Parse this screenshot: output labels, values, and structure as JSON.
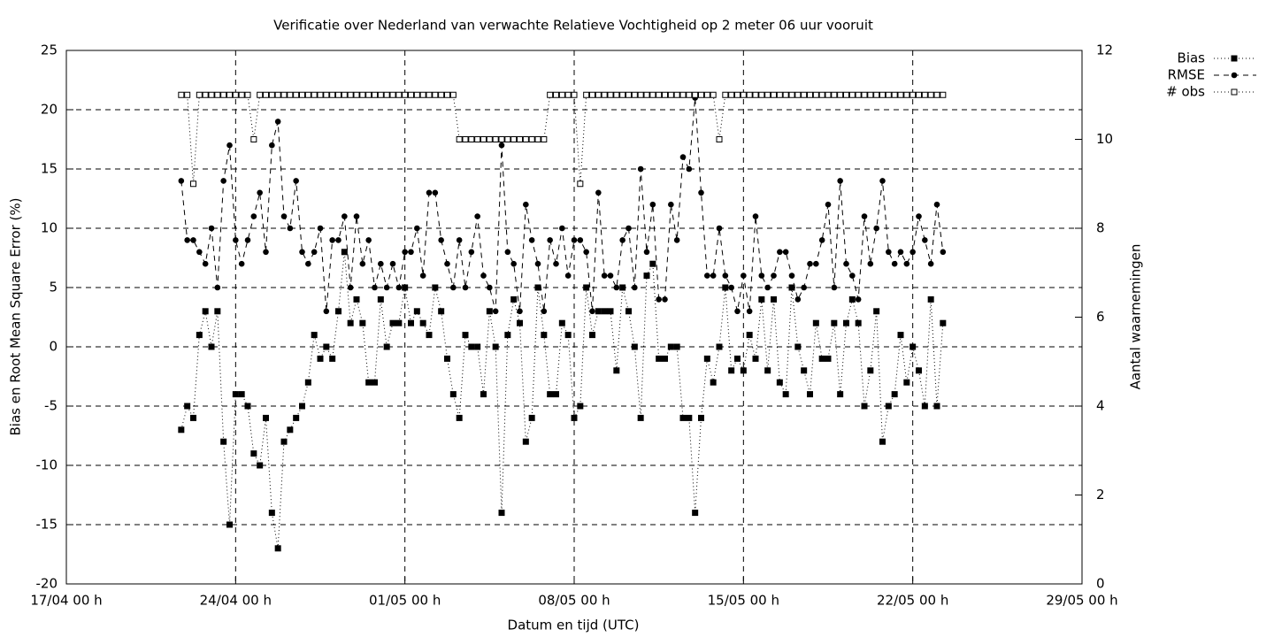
{
  "chart_data": {
    "type": "line",
    "title": "Verificatie over Nederland van verwachte Relatieve Vochtigheid op 2 meter 06 uur vooruit",
    "x_label": "Datum en tijd (UTC)",
    "y_label": "Bias en Root Mean Square Error (%)",
    "y2_label": "Aantal waarnemingen",
    "xlim": [
      "17/04 00 h",
      "29/05 00 h"
    ],
    "xticks": [
      "17/04 00 h",
      "24/04 00 h",
      "01/05 00 h",
      "08/05 00 h",
      "15/05 00 h",
      "22/05 00 h",
      "29/05 00 h"
    ],
    "ylim": [
      -20,
      25
    ],
    "yticks": [
      -20,
      -15,
      -10,
      -5,
      0,
      5,
      10,
      15,
      20,
      25
    ],
    "y2lim": [
      0,
      12
    ],
    "y2ticks": [
      0,
      2,
      4,
      6,
      8,
      10,
      12
    ],
    "grid": true,
    "legend": "top-right",
    "x": [
      "21/04 18 h",
      "22/04 00 h",
      "22/04 06 h",
      "22/04 12 h",
      "22/04 18 h",
      "23/04 00 h",
      "23/04 06 h",
      "23/04 12 h",
      "23/04 18 h",
      "24/04 00 h",
      "24/04 06 h",
      "24/04 12 h",
      "24/04 18 h",
      "25/04 00 h",
      "25/04 06 h",
      "25/04 12 h",
      "25/04 18 h",
      "26/04 00 h",
      "26/04 06 h",
      "26/04 12 h",
      "26/04 18 h",
      "27/04 00 h",
      "27/04 06 h",
      "27/04 12 h",
      "27/04 18 h",
      "28/04 00 h",
      "28/04 06 h",
      "28/04 12 h",
      "28/04 18 h",
      "29/04 00 h",
      "29/04 06 h",
      "29/04 12 h",
      "29/04 18 h",
      "30/04 00 h",
      "30/04 06 h",
      "30/04 12 h",
      "30/04 18 h",
      "01/05 00 h",
      "01/05 06 h",
      "01/05 12 h",
      "01/05 18 h",
      "02/05 00 h",
      "02/05 06 h",
      "02/05 12 h",
      "02/05 18 h",
      "03/05 00 h",
      "03/05 06 h",
      "03/05 12 h",
      "03/05 18 h",
      "04/05 00 h",
      "04/05 06 h",
      "04/05 12 h",
      "04/05 18 h",
      "05/05 00 h",
      "05/05 06 h",
      "05/05 12 h",
      "05/05 18 h",
      "06/05 00 h",
      "06/05 06 h",
      "06/05 12 h",
      "06/05 18 h",
      "07/05 00 h",
      "07/05 06 h",
      "07/05 12 h",
      "07/05 18 h",
      "08/05 00 h",
      "08/05 06 h",
      "08/05 12 h",
      "08/05 18 h",
      "09/05 00 h",
      "09/05 06 h",
      "09/05 12 h",
      "09/05 18 h",
      "10/05 00 h",
      "10/05 06 h",
      "10/05 12 h",
      "10/05 18 h",
      "11/05 00 h",
      "11/05 06 h",
      "11/05 12 h",
      "11/05 18 h",
      "12/05 00 h",
      "12/05 06 h",
      "12/05 12 h",
      "12/05 18 h",
      "13/05 00 h",
      "13/05 06 h",
      "13/05 12 h",
      "13/05 18 h",
      "14/05 00 h",
      "14/05 06 h",
      "14/05 12 h",
      "14/05 18 h",
      "15/05 00 h",
      "15/05 06 h",
      "15/05 12 h",
      "15/05 18 h",
      "16/05 00 h",
      "16/05 06 h",
      "16/05 12 h",
      "16/05 18 h",
      "17/05 00 h",
      "17/05 06 h",
      "17/05 12 h",
      "17/05 18 h",
      "18/05 00 h",
      "18/05 06 h",
      "18/05 12 h",
      "18/05 18 h",
      "19/05 00 h",
      "19/05 06 h",
      "19/05 12 h",
      "19/05 18 h",
      "20/05 00 h",
      "20/05 06 h",
      "20/05 12 h",
      "20/05 18 h",
      "21/05 00 h",
      "21/05 06 h",
      "21/05 12 h",
      "21/05 18 h",
      "22/05 00 h",
      "22/05 06 h",
      "22/05 12 h",
      "22/05 18 h",
      "23/05 00 h",
      "23/05 06 h"
    ],
    "series": [
      {
        "name": "Bias",
        "color": "#000000",
        "marker": "square",
        "line": "dotted",
        "values": [
          -7,
          -5,
          -6,
          1,
          3,
          0,
          3,
          -8,
          -15,
          -4,
          -4,
          -5,
          -9,
          -10,
          -6,
          -14,
          -17,
          -8,
          -7,
          -6,
          -5,
          -3,
          1,
          -1,
          0,
          -1,
          3,
          8,
          2,
          4,
          2,
          -3,
          -3,
          4,
          0,
          2,
          2,
          5,
          2,
          3,
          2,
          1,
          5,
          3,
          -1,
          -4,
          -6,
          1,
          0,
          0,
          -4,
          3,
          0,
          -14,
          1,
          4,
          2,
          -8,
          -6,
          5,
          1,
          -4,
          -4,
          2,
          1,
          -6,
          -5,
          5,
          1,
          3,
          3,
          3,
          -2,
          5,
          3,
          0,
          -6,
          6,
          7,
          -1,
          -1,
          0,
          0,
          -6,
          -6,
          -14,
          -6,
          -1,
          -3,
          0,
          5,
          -2,
          -1,
          -2,
          1,
          -1,
          4,
          -2,
          4,
          -3,
          -4,
          5,
          0,
          -2,
          -4,
          2,
          -1,
          -1,
          2,
          -4,
          2,
          4,
          2,
          -5,
          -2,
          3,
          -8,
          -5,
          -4,
          1,
          -3,
          0,
          -2,
          -5,
          4,
          -5,
          2
        ]
      },
      {
        "name": "RMSE",
        "color": "#000000",
        "marker": "circle",
        "line": "dashed",
        "values": [
          14,
          9,
          9,
          8,
          7,
          10,
          5,
          14,
          17,
          9,
          7,
          9,
          11,
          13,
          8,
          17,
          19,
          11,
          10,
          14,
          8,
          7,
          8,
          10,
          3,
          9,
          9,
          11,
          5,
          11,
          7,
          9,
          5,
          7,
          5,
          7,
          5,
          8,
          8,
          10,
          6,
          13,
          13,
          9,
          7,
          5,
          9,
          5,
          8,
          11,
          6,
          5,
          3,
          17,
          8,
          7,
          3,
          12,
          9,
          7,
          3,
          9,
          7,
          10,
          6,
          9,
          9,
          8,
          3,
          13,
          6,
          6,
          5,
          9,
          10,
          5,
          15,
          8,
          12,
          4,
          4,
          12,
          9,
          16,
          15,
          21,
          13,
          6,
          6,
          10,
          6,
          5,
          3,
          6,
          3,
          11,
          6,
          5,
          6,
          8,
          8,
          6,
          4,
          5,
          7,
          7,
          9,
          12,
          5,
          14,
          7,
          6,
          4,
          11,
          7,
          10,
          14,
          8,
          7,
          8,
          7,
          8,
          11,
          9,
          7,
          12,
          8
        ]
      },
      {
        "name": "# obs",
        "color": "#000000",
        "marker": "open-square",
        "line": "dotted",
        "axis": "y2",
        "values": [
          11,
          11,
          9,
          11,
          11,
          11,
          11,
          11,
          11,
          11,
          11,
          11,
          10,
          11,
          11,
          11,
          11,
          11,
          11,
          11,
          11,
          11,
          11,
          11,
          11,
          11,
          11,
          11,
          11,
          11,
          11,
          11,
          11,
          11,
          11,
          11,
          11,
          11,
          11,
          11,
          11,
          11,
          11,
          11,
          11,
          11,
          10,
          10,
          10,
          10,
          10,
          10,
          10,
          10,
          10,
          10,
          10,
          10,
          10,
          10,
          10,
          11,
          11,
          11,
          11,
          11,
          9,
          11,
          11,
          11,
          11,
          11,
          11,
          11,
          11,
          11,
          11,
          11,
          11,
          11,
          11,
          11,
          11,
          11,
          11,
          11,
          11,
          11,
          11,
          10,
          11,
          11,
          11,
          11,
          11,
          11,
          11,
          11,
          11,
          11,
          11,
          11,
          11,
          11,
          11,
          11,
          11,
          11,
          11,
          11,
          11,
          11,
          11,
          11,
          11,
          11,
          11,
          11,
          11,
          11,
          11,
          11,
          11,
          11,
          11,
          11,
          11
        ]
      }
    ]
  }
}
